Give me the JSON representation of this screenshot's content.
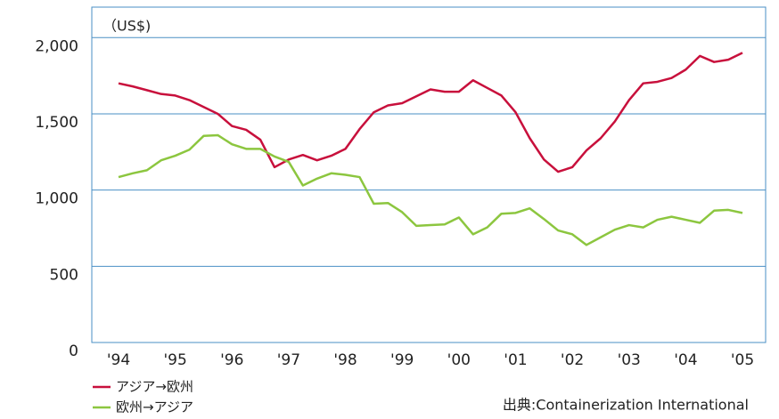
{
  "chart_data": {
    "type": "line",
    "unit_label": "（US$)",
    "source": "出典:Containerization International",
    "categories": [
      "'94",
      null,
      null,
      null,
      "'95",
      null,
      null,
      null,
      "'96",
      null,
      null,
      null,
      "'97",
      null,
      null,
      null,
      "'98",
      null,
      null,
      null,
      "'99",
      null,
      null,
      null,
      "'00",
      null,
      null,
      null,
      "'01",
      null,
      null,
      null,
      "'02",
      null,
      null,
      null,
      "'03",
      null,
      null,
      null,
      "'04",
      null,
      null,
      null,
      "'05"
    ],
    "series": [
      {
        "name": "アジア→欧州",
        "color": "#c8103c",
        "values": [
          1700,
          1680,
          1655,
          1630,
          1620,
          1590,
          1545,
          1500,
          1420,
          1395,
          1330,
          1150,
          1200,
          1230,
          1195,
          1225,
          1270,
          1400,
          1510,
          1555,
          1570,
          1615,
          1660,
          1645,
          1645,
          1720,
          1670,
          1620,
          1510,
          1340,
          1200,
          1120,
          1150,
          1260,
          1340,
          1450,
          1590,
          1700,
          1710,
          1735,
          1790,
          1880,
          1840,
          1855,
          1900
        ]
      },
      {
        "name": "欧州→アジア",
        "color": "#8cc63f",
        "values": [
          1085,
          1110,
          1130,
          1195,
          1225,
          1265,
          1355,
          1360,
          1300,
          1270,
          1270,
          1220,
          1185,
          1030,
          1075,
          1110,
          1100,
          1085,
          910,
          915,
          855,
          765,
          770,
          775,
          820,
          710,
          755,
          845,
          850,
          880,
          810,
          735,
          710,
          640,
          690,
          740,
          770,
          755,
          805,
          825,
          805,
          785,
          865,
          870,
          850
        ]
      }
    ],
    "ylim": [
      0,
      2200
    ],
    "yticks": [
      0,
      500,
      {
        "value": 1000,
        "label": "1,000"
      },
      {
        "value": 1500,
        "label": "1,500"
      },
      {
        "value": 2000,
        "label": "2,000"
      }
    ],
    "grid": true
  }
}
